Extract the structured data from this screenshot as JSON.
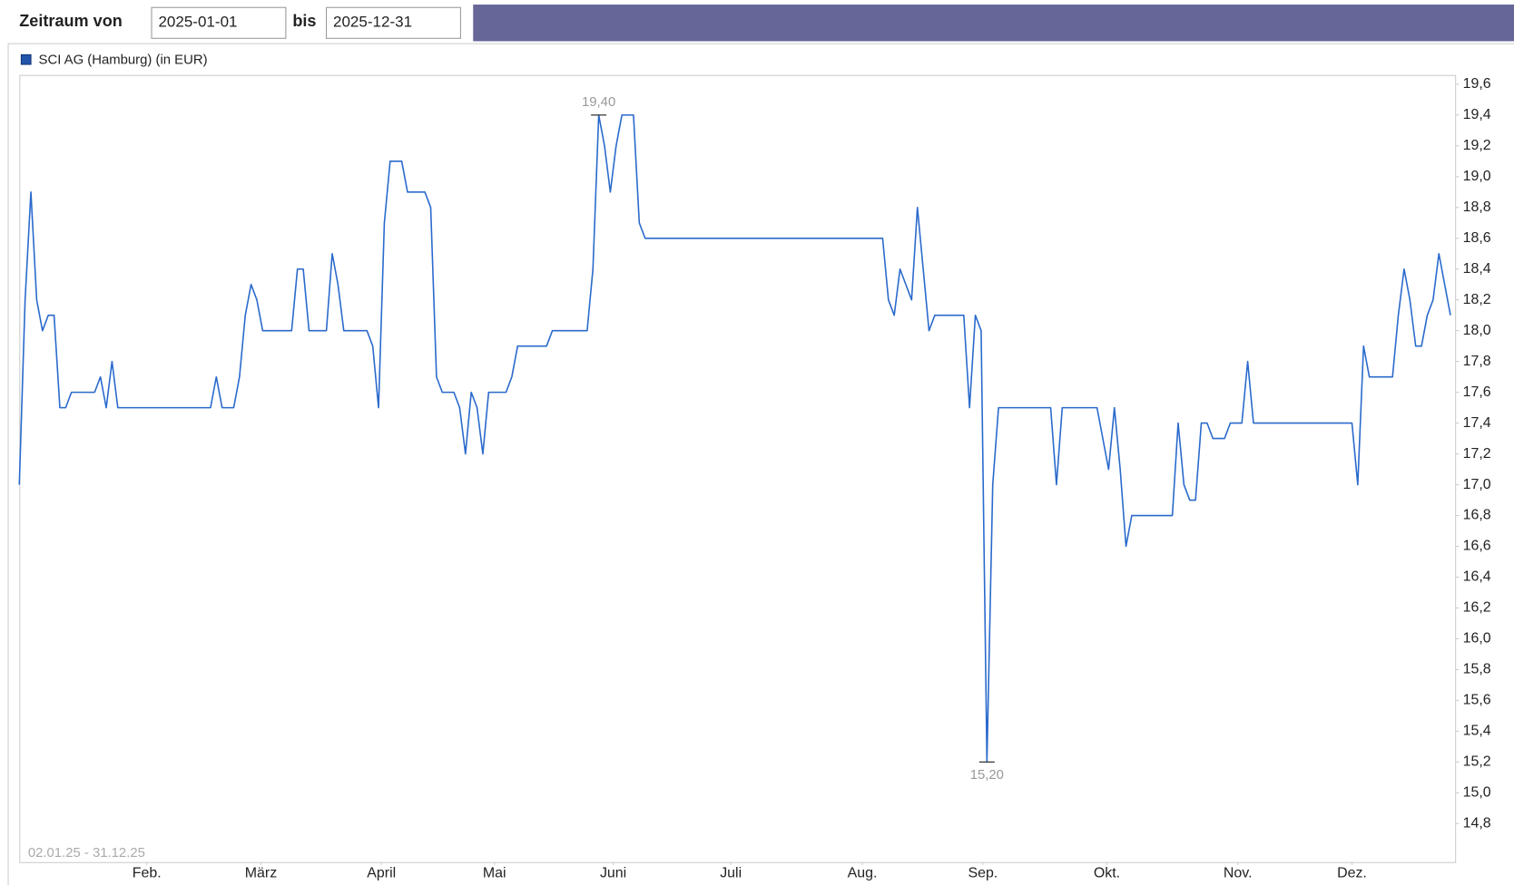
{
  "header": {
    "from_label": "Zeitraum von",
    "from_value": "2025-01-01",
    "to_label": "bis",
    "to_value": "2025-12-31"
  },
  "chart_data": {
    "type": "line",
    "legend": "SCI AG (Hamburg) (in EUR)",
    "range_note": "02.01.25 - 31.12.25",
    "color": "#2a6acc",
    "xlim": [
      0,
      247.8
    ],
    "xticks": [
      {
        "value": 22,
        "label": "Feb."
      },
      {
        "value": 41.7,
        "label": "März"
      },
      {
        "value": 62.5,
        "label": "April"
      },
      {
        "value": 82,
        "label": "Mai"
      },
      {
        "value": 102.5,
        "label": "Juni"
      },
      {
        "value": 122.8,
        "label": "Juli"
      },
      {
        "value": 145.5,
        "label": "Aug."
      },
      {
        "value": 166.3,
        "label": "Sep."
      },
      {
        "value": 187.7,
        "label": "Okt."
      },
      {
        "value": 210.3,
        "label": "Nov."
      },
      {
        "value": 230,
        "label": "Dez."
      }
    ],
    "ylim": [
      14.55,
      19.66
    ],
    "yticks": [
      {
        "value": 14.8,
        "label": "14,8"
      },
      {
        "value": 15.0,
        "label": "15,0"
      },
      {
        "value": 15.2,
        "label": "15,2"
      },
      {
        "value": 15.4,
        "label": "15,4"
      },
      {
        "value": 15.6,
        "label": "15,6"
      },
      {
        "value": 15.8,
        "label": "15,8"
      },
      {
        "value": 16.0,
        "label": "16,0"
      },
      {
        "value": 16.2,
        "label": "16,2"
      },
      {
        "value": 16.4,
        "label": "16,4"
      },
      {
        "value": 16.6,
        "label": "16,6"
      },
      {
        "value": 16.8,
        "label": "16,8"
      },
      {
        "value": 17.0,
        "label": "17,0"
      },
      {
        "value": 17.2,
        "label": "17,2"
      },
      {
        "value": 17.4,
        "label": "17,4"
      },
      {
        "value": 17.6,
        "label": "17,6"
      },
      {
        "value": 17.8,
        "label": "17,8"
      },
      {
        "value": 18.0,
        "label": "18,0"
      },
      {
        "value": 18.2,
        "label": "18,2"
      },
      {
        "value": 18.4,
        "label": "18,4"
      },
      {
        "value": 18.6,
        "label": "18,6"
      },
      {
        "value": 18.8,
        "label": "18,8"
      },
      {
        "value": 19.0,
        "label": "19,0"
      },
      {
        "value": 19.2,
        "label": "19,2"
      },
      {
        "value": 19.4,
        "label": "19,4"
      },
      {
        "value": 19.6,
        "label": "19,6"
      }
    ],
    "values": [
      17.0,
      18.2,
      18.9,
      18.2,
      18.0,
      18.1,
      18.1,
      17.5,
      17.5,
      17.6,
      17.6,
      17.6,
      17.6,
      17.6,
      17.7,
      17.5,
      17.8,
      17.5,
      17.5,
      17.5,
      17.5,
      17.5,
      17.5,
      17.5,
      17.5,
      17.5,
      17.5,
      17.5,
      17.5,
      17.5,
      17.5,
      17.5,
      17.5,
      17.5,
      17.7,
      17.5,
      17.5,
      17.5,
      17.7,
      18.1,
      18.3,
      18.2,
      18.0,
      18.0,
      18.0,
      18.0,
      18.0,
      18.0,
      18.4,
      18.4,
      18.0,
      18.0,
      18.0,
      18.0,
      18.5,
      18.3,
      18.0,
      18.0,
      18.0,
      18.0,
      18.0,
      17.9,
      17.5,
      18.7,
      19.1,
      19.1,
      19.1,
      18.9,
      18.9,
      18.9,
      18.9,
      18.8,
      17.7,
      17.6,
      17.6,
      17.6,
      17.5,
      17.2,
      17.6,
      17.5,
      17.2,
      17.6,
      17.6,
      17.6,
      17.6,
      17.7,
      17.9,
      17.9,
      17.9,
      17.9,
      17.9,
      17.9,
      18.0,
      18.0,
      18.0,
      18.0,
      18.0,
      18.0,
      18.0,
      18.4,
      19.4,
      19.2,
      18.9,
      19.2,
      19.4,
      19.4,
      19.4,
      18.7,
      18.6,
      18.6,
      18.6,
      18.6,
      18.6,
      18.6,
      18.6,
      18.6,
      18.6,
      18.6,
      18.6,
      18.6,
      18.6,
      18.6,
      18.6,
      18.6,
      18.6,
      18.6,
      18.6,
      18.6,
      18.6,
      18.6,
      18.6,
      18.6,
      18.6,
      18.6,
      18.6,
      18.6,
      18.6,
      18.6,
      18.6,
      18.6,
      18.6,
      18.6,
      18.6,
      18.6,
      18.6,
      18.6,
      18.6,
      18.6,
      18.6,
      18.6,
      18.2,
      18.1,
      18.4,
      18.3,
      18.2,
      18.8,
      18.4,
      18.0,
      18.1,
      18.1,
      18.1,
      18.1,
      18.1,
      18.1,
      17.5,
      18.1,
      18.0,
      15.2,
      17.0,
      17.5,
      17.5,
      17.5,
      17.5,
      17.5,
      17.5,
      17.5,
      17.5,
      17.5,
      17.5,
      17.0,
      17.5,
      17.5,
      17.5,
      17.5,
      17.5,
      17.5,
      17.5,
      17.3,
      17.1,
      17.5,
      17.1,
      16.6,
      16.8,
      16.8,
      16.8,
      16.8,
      16.8,
      16.8,
      16.8,
      16.8,
      17.4,
      17.0,
      16.9,
      16.9,
      17.4,
      17.4,
      17.3,
      17.3,
      17.3,
      17.4,
      17.4,
      17.4,
      17.8,
      17.4,
      17.4,
      17.4,
      17.4,
      17.4,
      17.4,
      17.4,
      17.4,
      17.4,
      17.4,
      17.4,
      17.4,
      17.4,
      17.4,
      17.4,
      17.4,
      17.4,
      17.4,
      17.0,
      17.9,
      17.7,
      17.7,
      17.7,
      17.7,
      17.7,
      18.1,
      18.4,
      18.2,
      17.9,
      17.9,
      18.1,
      18.2,
      18.5,
      18.3,
      18.1
    ],
    "value_labels": [
      null,
      null,
      null,
      null,
      null,
      null,
      null,
      null,
      null,
      null,
      null,
      null,
      null,
      null,
      null,
      null,
      null,
      null,
      null,
      null,
      null,
      null,
      null,
      null,
      null,
      null,
      null,
      null,
      null,
      null,
      null,
      null,
      null,
      null,
      null,
      null,
      null,
      null,
      null,
      null,
      null,
      null,
      null,
      null,
      null,
      null,
      null,
      null,
      null,
      null,
      null,
      null,
      null,
      null,
      null,
      null,
      null,
      null,
      null,
      null,
      null,
      null,
      null,
      null,
      null,
      null,
      null,
      null,
      null,
      null,
      null,
      null,
      null,
      null,
      null,
      null,
      null,
      null,
      null,
      null,
      null,
      null,
      null,
      null,
      null,
      null,
      null,
      null,
      null,
      null,
      null,
      null,
      null,
      null,
      null,
      null,
      null,
      null,
      null,
      null,
      "19,40",
      null,
      null,
      null,
      null,
      null,
      null,
      null,
      null,
      null,
      null,
      null,
      null,
      null,
      null,
      null,
      null,
      null,
      null,
      null,
      null,
      null,
      null,
      null,
      null,
      null,
      null,
      null,
      null,
      null,
      null,
      null,
      null,
      null,
      null,
      null,
      null,
      null,
      null,
      null,
      null,
      null,
      null,
      null,
      null,
      null,
      null,
      null,
      null,
      null,
      null,
      null,
      null,
      null,
      null,
      null,
      null,
      null,
      null,
      null,
      null,
      null,
      null,
      null,
      null,
      null,
      null,
      "15,20",
      null,
      null,
      null,
      null,
      null,
      null,
      null,
      null,
      null,
      null,
      null,
      null,
      null,
      null,
      null,
      null,
      null,
      null,
      null,
      null,
      null,
      null,
      null,
      null,
      null,
      null,
      null,
      null,
      null,
      null,
      null,
      null,
      null,
      null,
      null,
      null,
      null,
      null,
      null,
      null,
      null,
      null,
      null,
      null,
      null,
      null,
      null,
      null,
      null,
      null,
      null,
      null,
      null,
      null,
      null,
      null,
      null,
      null,
      null,
      null,
      null,
      null,
      null,
      null,
      null,
      null,
      null,
      null,
      null,
      null,
      null,
      null,
      null,
      null,
      null,
      null,
      null,
      null,
      null,
      null
    ]
  }
}
